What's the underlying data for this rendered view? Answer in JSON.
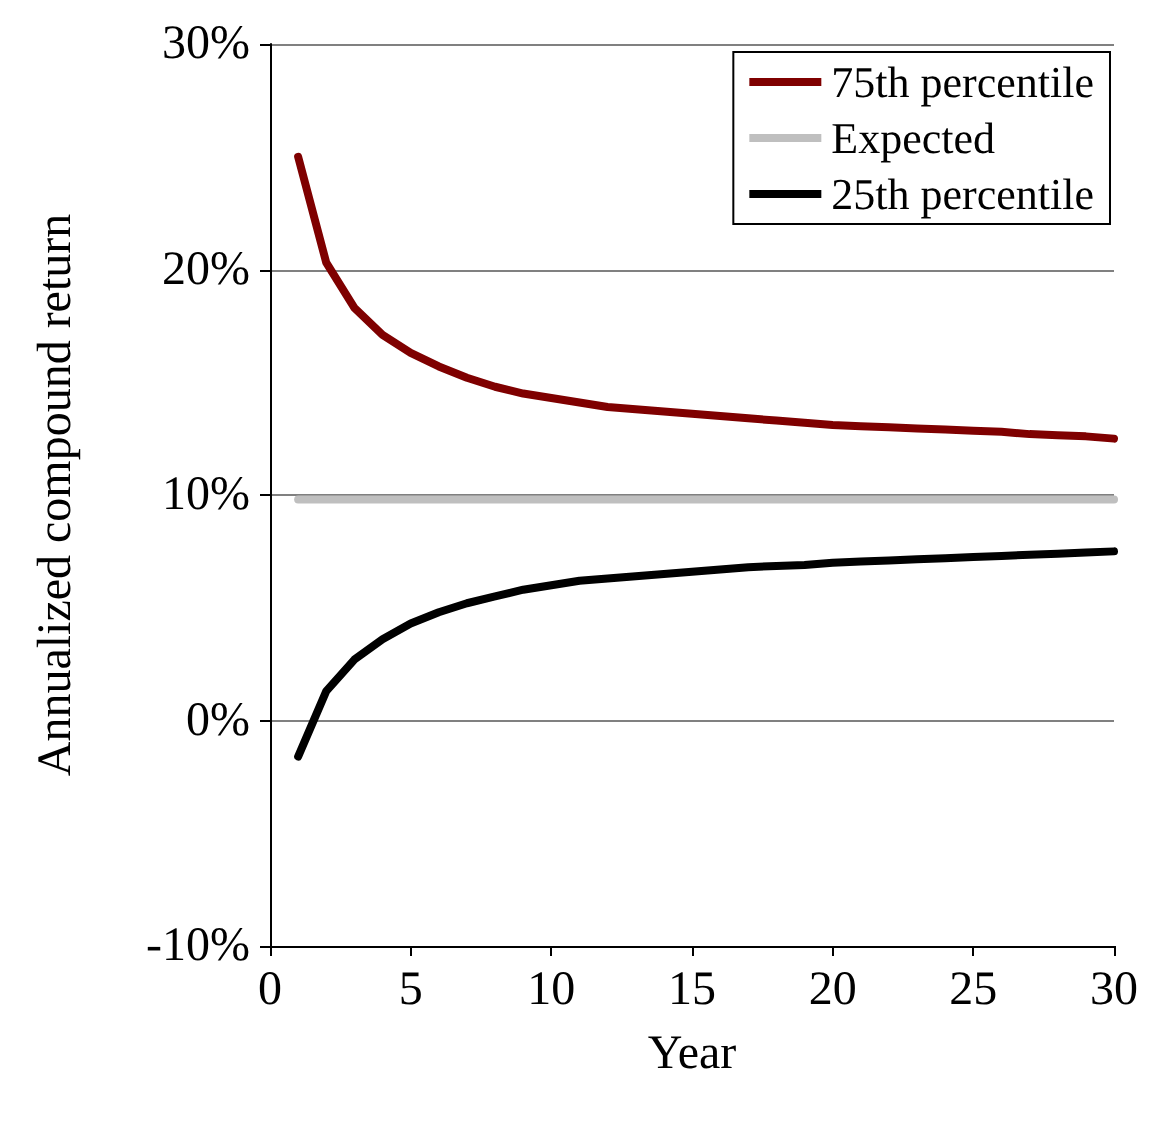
{
  "chart_data": {
    "type": "line",
    "xlabel": "Year",
    "ylabel": "Annualized compound return",
    "x": [
      1,
      2,
      3,
      4,
      5,
      6,
      7,
      8,
      9,
      10,
      11,
      12,
      13,
      14,
      15,
      16,
      17,
      18,
      19,
      20,
      21,
      22,
      23,
      24,
      25,
      26,
      27,
      28,
      29,
      30
    ],
    "series": [
      {
        "name": "75th percentile",
        "color": "#7f0000",
        "values": [
          25,
          20.3,
          18.3,
          17.1,
          16.3,
          15.7,
          15.2,
          14.8,
          14.5,
          14.3,
          14.1,
          13.9,
          13.8,
          13.7,
          13.6,
          13.5,
          13.4,
          13.3,
          13.2,
          13.1,
          13.05,
          13.0,
          12.95,
          12.9,
          12.85,
          12.8,
          12.7,
          12.65,
          12.6,
          12.5
        ]
      },
      {
        "name": "Expected",
        "color": "#bfbfbf",
        "values": [
          9.8,
          9.8,
          9.8,
          9.8,
          9.8,
          9.8,
          9.8,
          9.8,
          9.8,
          9.8,
          9.8,
          9.8,
          9.8,
          9.8,
          9.8,
          9.8,
          9.8,
          9.8,
          9.8,
          9.8,
          9.8,
          9.8,
          9.8,
          9.8,
          9.8,
          9.8,
          9.8,
          9.8,
          9.8,
          9.8
        ]
      },
      {
        "name": "25th percentile",
        "color": "#000000",
        "values": [
          -1.6,
          1.3,
          2.7,
          3.6,
          4.3,
          4.8,
          5.2,
          5.5,
          5.8,
          6.0,
          6.2,
          6.3,
          6.4,
          6.5,
          6.6,
          6.7,
          6.8,
          6.85,
          6.9,
          7.0,
          7.05,
          7.1,
          7.15,
          7.2,
          7.25,
          7.3,
          7.35,
          7.4,
          7.45,
          7.5
        ]
      }
    ],
    "xlim": [
      0,
      30
    ],
    "xticks": [
      0,
      5,
      10,
      15,
      20,
      25,
      30
    ],
    "ylim": [
      -10,
      30
    ],
    "yticks": [
      {
        "value": -10,
        "label": "-10%"
      },
      {
        "value": 0,
        "label": "0%"
      },
      {
        "value": 10,
        "label": "10%"
      },
      {
        "value": 20,
        "label": "20%"
      },
      {
        "value": 30,
        "label": "30%"
      }
    ],
    "grid": "y",
    "legend": "top right",
    "marker": "none",
    "line_style": "solid"
  }
}
